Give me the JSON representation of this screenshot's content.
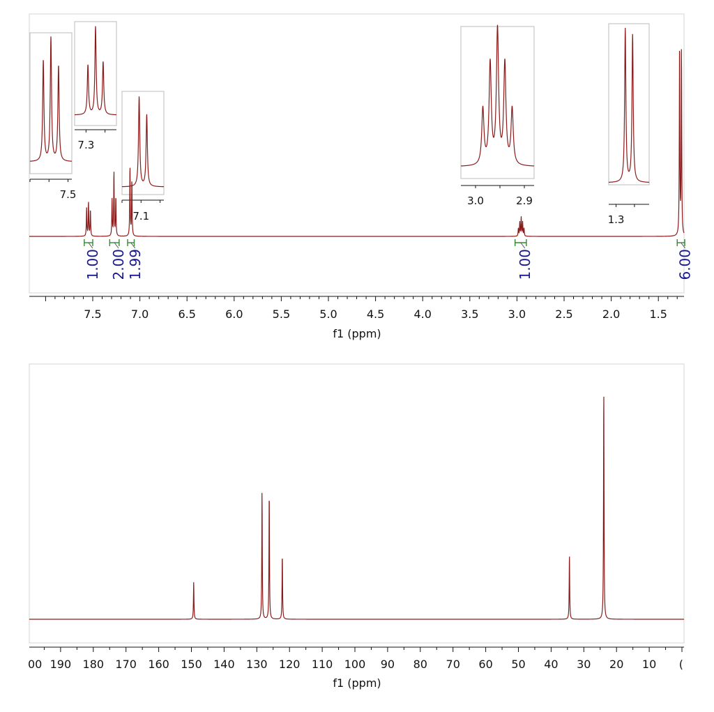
{
  "colors": {
    "spectrum": "#8b1a1a",
    "integral": "#2e8b2e",
    "integral_text": "#1a1a8c",
    "frame": "#cccccc"
  },
  "chart_data": [
    {
      "type": "line",
      "nucleus": "1H",
      "xlabel": "f1 (ppm)",
      "xlim": [
        8.0,
        1.0
      ],
      "x_reversed": true,
      "ticks": [
        "7.5",
        "7.0",
        "6.5",
        "6.0",
        "5.5",
        "5.0",
        "4.5",
        "4.0",
        "3.5",
        "3.0",
        "2.5",
        "2.0",
        "1.5"
      ],
      "peaks": [
        {
          "ppm": 7.565,
          "h": 0.36
        },
        {
          "ppm": 7.545,
          "h": 0.44
        },
        {
          "ppm": 7.525,
          "h": 0.34
        },
        {
          "ppm": 7.295,
          "h": 0.47
        },
        {
          "ppm": 7.275,
          "h": 0.83
        },
        {
          "ppm": 7.255,
          "h": 0.5
        },
        {
          "ppm": 7.105,
          "h": 0.9
        },
        {
          "ppm": 7.085,
          "h": 0.72
        },
        {
          "ppm": 2.985,
          "h": 0.1
        },
        {
          "ppm": 2.97,
          "h": 0.18
        },
        {
          "ppm": 2.955,
          "h": 0.24
        },
        {
          "ppm": 2.94,
          "h": 0.18
        },
        {
          "ppm": 2.925,
          "h": 0.1
        },
        {
          "ppm": 1.275,
          "h": 2.5
        },
        {
          "ppm": 1.255,
          "h": 2.4
        }
      ],
      "integrals": [
        {
          "from": 7.59,
          "to": 7.5,
          "value": "1.00"
        },
        {
          "from": 7.32,
          "to": 7.22,
          "value": "2.00"
        },
        {
          "from": 7.13,
          "to": 7.06,
          "value": "1.99"
        },
        {
          "from": 3.02,
          "to": 2.9,
          "value": "1.00"
        },
        {
          "from": 1.3,
          "to": 1.22,
          "value": "6.00"
        }
      ],
      "insets": [
        {
          "center": 7.545,
          "ticks": [
            "7.5"
          ],
          "from": 7.6,
          "to": 7.49
        },
        {
          "center": 7.275,
          "ticks": [
            "7.3"
          ],
          "from": 7.33,
          "to": 7.22
        },
        {
          "center": 7.095,
          "ticks": [
            "7.1"
          ],
          "from": 7.15,
          "to": 7.04
        },
        {
          "center": 2.955,
          "ticks": [
            "3.0",
            "2.9"
          ],
          "from": 3.03,
          "to": 2.88
        },
        {
          "center": 1.265,
          "ticks": [
            "1.3"
          ],
          "from": 1.32,
          "to": 1.21
        }
      ]
    },
    {
      "type": "line",
      "nucleus": "13C",
      "xlabel": "f1 (ppm)",
      "xlim": [
        200,
        0
      ],
      "x_reversed": true,
      "ticks": [
        "00",
        "190",
        "180",
        "170",
        "160",
        "150",
        "140",
        "130",
        "120",
        "110",
        "100",
        "90",
        "80",
        "70",
        "60",
        "50",
        "40",
        "30",
        "20",
        "10",
        "("
      ],
      "peaks": [
        {
          "ppm": 149.3,
          "h": 0.16
        },
        {
          "ppm": 128.4,
          "h": 0.55
        },
        {
          "ppm": 126.2,
          "h": 0.55
        },
        {
          "ppm": 122.2,
          "h": 0.28
        },
        {
          "ppm": 34.4,
          "h": 0.28
        },
        {
          "ppm": 23.9,
          "h": 1.0
        }
      ]
    }
  ]
}
